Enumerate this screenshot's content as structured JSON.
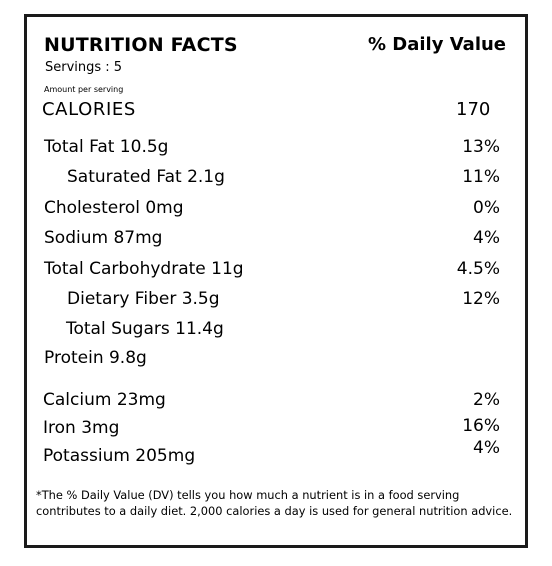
{
  "header": {
    "title": "NUTRITION FACTS",
    "daily_value_header": "% Daily Value",
    "servings": "Servings : 5",
    "amount_per_serving": "Amount per serving"
  },
  "calories": {
    "label": "CALORIES",
    "value": "170"
  },
  "nutrients": [
    {
      "label": "Total Fat 10.5g",
      "dv": "13%"
    },
    {
      "label": "Saturated Fat 2.1g",
      "dv": "11%"
    },
    {
      "label": "Cholesterol 0mg",
      "dv": "0%"
    },
    {
      "label": "Sodium 87mg",
      "dv": "4%"
    },
    {
      "label": "Total Carbohydrate 11g",
      "dv": "4.5%"
    },
    {
      "label": "Dietary Fiber 3.5g",
      "dv": "12%"
    },
    {
      "label": "Total Sugars 11.4g",
      "dv": ""
    },
    {
      "label": "Protein 9.8g",
      "dv": ""
    }
  ],
  "minerals": [
    {
      "label": "Calcium 23mg",
      "dv": "2%"
    },
    {
      "label": "Iron 3mg",
      "dv": "16%"
    },
    {
      "label": "Potassium 205mg",
      "dv": "4%"
    }
  ],
  "footnote": "*The % Daily Value (DV) tells you how much a nutrient is in a  food serving contributes to a daily diet. 2,000 calories a day is used for general nutrition advice."
}
